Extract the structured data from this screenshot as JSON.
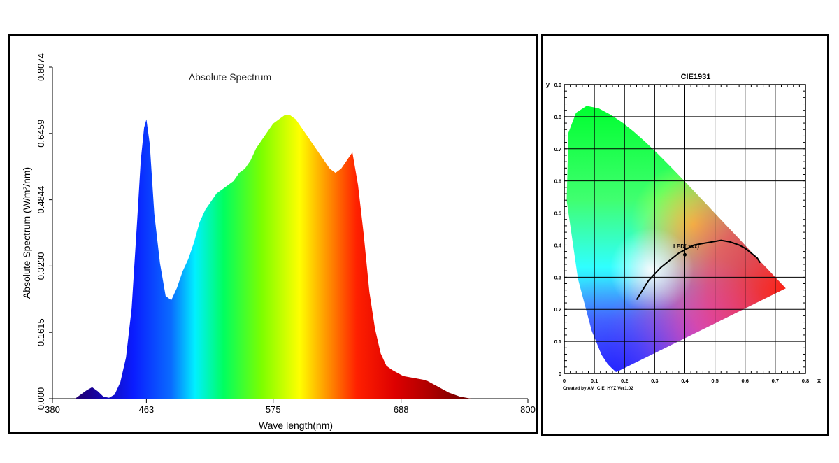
{
  "chart_data": [
    {
      "type": "area",
      "title": "Absolute Spectrum",
      "xlabel": "Wave length(nm)",
      "ylabel": "Absolute Spectrum (W/m²/nm)",
      "xlim": [
        380,
        800
      ],
      "ylim": [
        0,
        0.8074
      ],
      "x_ticks": [
        "380",
        "463",
        "575",
        "688",
        "800"
      ],
      "y_ticks": [
        "0.000",
        "0.1615",
        "0.3230",
        "0.4844",
        "0.6459",
        "0.8074"
      ],
      "grid": false,
      "colormap": "visible-spectrum",
      "series": [
        {
          "x": [
            380,
            400,
            410,
            415,
            420,
            425,
            430,
            435,
            440,
            445,
            450,
            455,
            458,
            461,
            463,
            466,
            470,
            475,
            480,
            485,
            490,
            495,
            500,
            505,
            510,
            515,
            520,
            525,
            530,
            540,
            545,
            550,
            555,
            560,
            565,
            570,
            575,
            580,
            585,
            590,
            595,
            600,
            605,
            610,
            615,
            620,
            625,
            630,
            635,
            640,
            645,
            650,
            655,
            660,
            665,
            670,
            675,
            680,
            690,
            700,
            710,
            720,
            730,
            740,
            750,
            760
          ],
          "y": [
            0.0,
            0.0,
            0.02,
            0.028,
            0.018,
            0.005,
            0.002,
            0.01,
            0.04,
            0.1,
            0.22,
            0.44,
            0.58,
            0.66,
            0.68,
            0.62,
            0.45,
            0.33,
            0.25,
            0.24,
            0.27,
            0.31,
            0.34,
            0.38,
            0.43,
            0.46,
            0.48,
            0.5,
            0.51,
            0.53,
            0.55,
            0.56,
            0.58,
            0.61,
            0.63,
            0.65,
            0.67,
            0.68,
            0.69,
            0.69,
            0.68,
            0.66,
            0.64,
            0.62,
            0.6,
            0.58,
            0.56,
            0.55,
            0.56,
            0.58,
            0.6,
            0.52,
            0.4,
            0.26,
            0.17,
            0.11,
            0.08,
            0.07,
            0.055,
            0.05,
            0.045,
            0.03,
            0.015,
            0.005,
            0.0,
            0.0
          ]
        }
      ]
    },
    {
      "type": "scatter",
      "title": "CIE1931",
      "xlabel": "x",
      "ylabel": "y",
      "xlim": [
        0,
        0.8
      ],
      "ylim": [
        0,
        0.9
      ],
      "x_ticks": [
        "0",
        "0.1",
        "0.2",
        "0.3",
        "0.4",
        "0.5",
        "0.6",
        "0.7",
        "0.8"
      ],
      "y_ticks": [
        "0",
        "0.1",
        "0.2",
        "0.3",
        "0.4",
        "0.5",
        "0.6",
        "0.7",
        "0.8",
        "0.9"
      ],
      "grid": true,
      "footer": "Created by AM_CIE_HYZ Ver1.02",
      "points": [
        {
          "label": "LED(.xxx)",
          "x": 0.4,
          "y": 0.37
        }
      ],
      "planckian_locus": {
        "x": [
          0.24,
          0.26,
          0.28,
          0.3,
          0.32,
          0.34,
          0.36,
          0.38,
          0.4,
          0.43,
          0.46,
          0.49,
          0.52,
          0.55,
          0.58,
          0.6,
          0.62,
          0.64,
          0.65
        ],
        "y": [
          0.23,
          0.26,
          0.29,
          0.31,
          0.33,
          0.345,
          0.36,
          0.375,
          0.385,
          0.4,
          0.405,
          0.41,
          0.415,
          0.41,
          0.4,
          0.39,
          0.375,
          0.36,
          0.345
        ]
      },
      "spectral_locus": {
        "x": [
          0.1741,
          0.1738,
          0.1736,
          0.1733,
          0.1726,
          0.1714,
          0.1689,
          0.1644,
          0.1566,
          0.144,
          0.1241,
          0.0913,
          0.0454,
          0.0082,
          0.0139,
          0.0389,
          0.0743,
          0.1142,
          0.1547,
          0.1929,
          0.2296,
          0.2658,
          0.3016,
          0.3373,
          0.3731,
          0.4087,
          0.4441,
          0.4788,
          0.5125,
          0.5448,
          0.5752,
          0.6029,
          0.627,
          0.6482,
          0.6658,
          0.6801,
          0.6915,
          0.7006,
          0.7079,
          0.714,
          0.719,
          0.723,
          0.726,
          0.7347
        ],
        "y": [
          0.005,
          0.0049,
          0.0049,
          0.0048,
          0.0048,
          0.0051,
          0.0069,
          0.0109,
          0.0177,
          0.0297,
          0.0578,
          0.1327,
          0.295,
          0.5384,
          0.7502,
          0.812,
          0.8338,
          0.8262,
          0.8059,
          0.7816,
          0.7543,
          0.7243,
          0.6923,
          0.6589,
          0.6245,
          0.5896,
          0.5547,
          0.5202,
          0.4866,
          0.4544,
          0.4242,
          0.3965,
          0.3725,
          0.3514,
          0.334,
          0.3197,
          0.3083,
          0.2993,
          0.292,
          0.2859,
          0.2809,
          0.2769,
          0.274,
          0.2653
        ]
      }
    }
  ]
}
